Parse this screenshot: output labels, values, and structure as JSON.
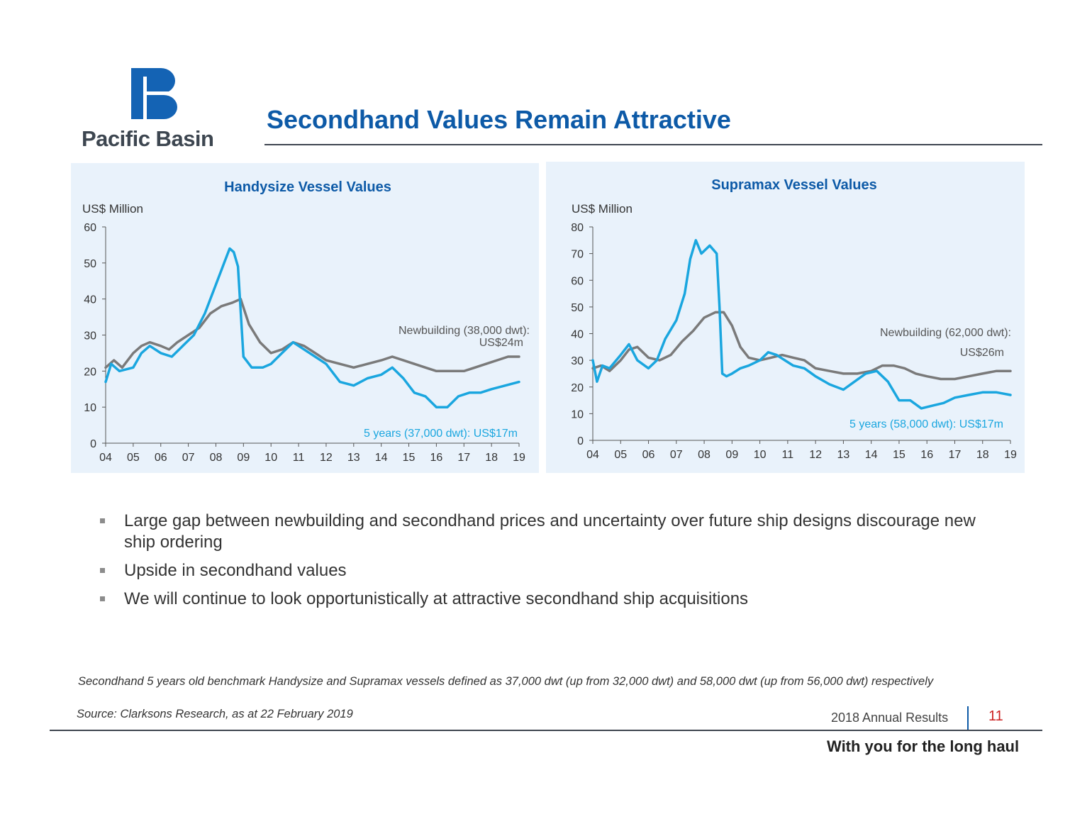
{
  "brand": {
    "name": "Pacific Basin",
    "logo_icon": "pb-logo-icon",
    "colors": {
      "brand_blue": "#0d5aa7",
      "secondhand_line": "#1aa6df",
      "newbuilding_line": "#7a7a7a",
      "panel_bg": "#e9f2fb",
      "page_number": "#cc1f1f"
    }
  },
  "page": {
    "title": "Secondhand Values Remain Attractive",
    "bullets": [
      "Large gap between newbuilding and secondhand prices and uncertainty over future ship designs discourage new ship ordering",
      "Upside in secondhand values",
      "We will continue to look opportunistically at attractive secondhand ship acquisitions"
    ],
    "footnote": "Secondhand 5 years old benchmark Handysize and Supramax vessels defined as 37,000 dwt (up from 32,000 dwt) and 58,000 dwt (up from 56,000 dwt) respectively",
    "source": "Source: Clarksons Research, as at 22 February 2019",
    "report_label": "2018 Annual Results",
    "page_number": "11",
    "tagline": "With you for the long haul"
  },
  "chart_data": [
    {
      "type": "line",
      "title": "Handysize Vessel Values",
      "ylabel": "US$ Million",
      "ylim": [
        0,
        60
      ],
      "yticks": [
        "0",
        "10",
        "20",
        "30",
        "40",
        "50",
        "60"
      ],
      "xlim": [
        2004,
        2019
      ],
      "xtick_values": [
        2004,
        2005,
        2006,
        2007,
        2008,
        2009,
        2010,
        2011,
        2012,
        2013,
        2014,
        2015,
        2016,
        2017,
        2018,
        2019
      ],
      "xticks": [
        "04",
        "05",
        "06",
        "07",
        "08",
        "09",
        "10",
        "11",
        "12",
        "13",
        "14",
        "15",
        "16",
        "17",
        "18",
        "19"
      ],
      "grid": false,
      "series": [
        {
          "name": "Newbuilding (38,000 dwt):",
          "annotation_line2": "US$24m",
          "color": "#7a7a7a",
          "x": [
            2004,
            2004.3,
            2004.6,
            2005,
            2005.3,
            2005.6,
            2006,
            2006.3,
            2006.6,
            2007,
            2007.4,
            2007.8,
            2008.2,
            2008.6,
            2008.9,
            2009.2,
            2009.6,
            2010,
            2010.4,
            2010.8,
            2011.2,
            2011.6,
            2012,
            2012.5,
            2013,
            2013.5,
            2014,
            2014.4,
            2014.8,
            2015.2,
            2015.6,
            2016,
            2016.5,
            2017,
            2017.4,
            2017.8,
            2018.2,
            2018.6,
            2019
          ],
          "values": [
            21,
            23,
            21,
            25,
            27,
            28,
            27,
            26,
            28,
            30,
            32,
            36,
            38,
            39,
            40,
            33,
            28,
            25,
            26,
            28,
            27,
            25,
            23,
            22,
            21,
            22,
            23,
            24,
            23,
            22,
            21,
            20,
            20,
            20,
            21,
            22,
            23,
            24,
            24
          ]
        },
        {
          "name": "5 years (37,000 dwt): US$17m",
          "color": "#1aa6df",
          "x": [
            2004,
            2004.2,
            2004.5,
            2005,
            2005.3,
            2005.6,
            2006,
            2006.4,
            2006.8,
            2007.2,
            2007.6,
            2008,
            2008.3,
            2008.5,
            2008.65,
            2008.8,
            2009,
            2009.3,
            2009.7,
            2010,
            2010.4,
            2010.8,
            2011.2,
            2011.6,
            2012,
            2012.5,
            2013,
            2013.5,
            2014,
            2014.4,
            2014.8,
            2015.2,
            2015.6,
            2016,
            2016.4,
            2016.8,
            2017.2,
            2017.6,
            2018,
            2018.5,
            2019
          ],
          "values": [
            17,
            22,
            20,
            21,
            25,
            27,
            25,
            24,
            27,
            30,
            36,
            44,
            50,
            54,
            53,
            49,
            24,
            21,
            21,
            22,
            25,
            28,
            26,
            24,
            22,
            17,
            16,
            18,
            19,
            21,
            18,
            14,
            13,
            10,
            10,
            13,
            14,
            14,
            15,
            16,
            17
          ]
        }
      ]
    },
    {
      "type": "line",
      "title": "Supramax Vessel Values",
      "ylabel": "US$ Million",
      "ylim": [
        0,
        80
      ],
      "yticks": [
        "0",
        "10",
        "20",
        "30",
        "40",
        "50",
        "60",
        "70",
        "80"
      ],
      "xlim": [
        2004,
        2019
      ],
      "xtick_values": [
        2004,
        2005,
        2006,
        2007,
        2008,
        2009,
        2010,
        2011,
        2012,
        2013,
        2014,
        2015,
        2016,
        2017,
        2018,
        2019
      ],
      "xticks": [
        "04",
        "05",
        "06",
        "07",
        "08",
        "09",
        "10",
        "11",
        "12",
        "13",
        "14",
        "15",
        "16",
        "17",
        "18",
        "19"
      ],
      "grid": false,
      "series": [
        {
          "name": "Newbuilding (62,000 dwt):",
          "annotation_line2": "US$26m",
          "color": "#7a7a7a",
          "x": [
            2004,
            2004.3,
            2004.6,
            2005,
            2005.3,
            2005.6,
            2006,
            2006.4,
            2006.8,
            2007.2,
            2007.6,
            2008,
            2008.4,
            2008.7,
            2009,
            2009.3,
            2009.6,
            2010,
            2010.4,
            2010.8,
            2011.2,
            2011.6,
            2012,
            2012.5,
            2013,
            2013.5,
            2014,
            2014.4,
            2014.8,
            2015.2,
            2015.6,
            2016,
            2016.5,
            2017,
            2017.5,
            2018,
            2018.5,
            2019
          ],
          "values": [
            27,
            28,
            26,
            30,
            34,
            35,
            31,
            30,
            32,
            37,
            41,
            46,
            48,
            48,
            43,
            35,
            31,
            30,
            31,
            32,
            31,
            30,
            27,
            26,
            25,
            25,
            26,
            28,
            28,
            27,
            25,
            24,
            23,
            23,
            24,
            25,
            26,
            26
          ]
        },
        {
          "name": "5 years (58,000 dwt): US$17m",
          "color": "#1aa6df",
          "x": [
            2004,
            2004.15,
            2004.35,
            2004.6,
            2005,
            2005.3,
            2005.6,
            2006,
            2006.3,
            2006.6,
            2007,
            2007.3,
            2007.5,
            2007.7,
            2007.9,
            2008.2,
            2008.45,
            2008.55,
            2008.65,
            2008.8,
            2009,
            2009.3,
            2009.6,
            2010,
            2010.3,
            2010.6,
            2010.9,
            2011.2,
            2011.6,
            2012,
            2012.5,
            2013,
            2013.4,
            2013.8,
            2014.2,
            2014.6,
            2015,
            2015.4,
            2015.8,
            2016.2,
            2016.6,
            2017,
            2017.5,
            2018,
            2018.5,
            2019
          ],
          "values": [
            30,
            22,
            28,
            27,
            32,
            36,
            30,
            27,
            30,
            38,
            45,
            55,
            68,
            75,
            70,
            73,
            70,
            50,
            25,
            24,
            25,
            27,
            28,
            30,
            33,
            32,
            30,
            28,
            27,
            24,
            21,
            19,
            22,
            25,
            26,
            22,
            15,
            15,
            12,
            13,
            14,
            16,
            17,
            18,
            18,
            17
          ]
        }
      ]
    }
  ]
}
